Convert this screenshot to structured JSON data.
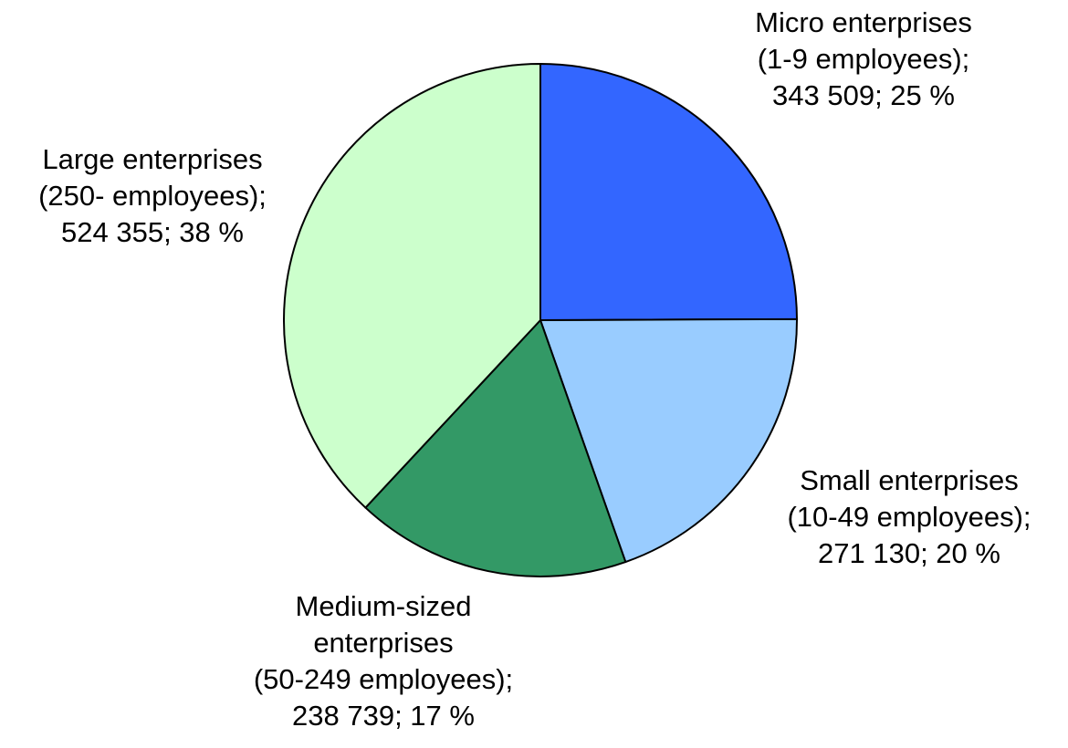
{
  "chart_data": {
    "type": "pie",
    "title": "",
    "start_angle_deg": 0,
    "direction": "clockwise",
    "slices": [
      {
        "name": "Micro enterprises (1-9 employees)",
        "value": 343509,
        "percent": 25,
        "color": "#3366FF",
        "label_lines": [
          "Micro enterprises",
          "(1-9 employees);",
          "343 509; 25 %"
        ]
      },
      {
        "name": "Small enterprises (10-49 employees)",
        "value": 271130,
        "percent": 20,
        "color": "#99CCFF",
        "label_lines": [
          "Small enterprises",
          "(10-49 employees);",
          "271 130; 20 %"
        ]
      },
      {
        "name": "Medium-sized enterprises (50-249 employees)",
        "value": 238739,
        "percent": 17,
        "color": "#339966",
        "label_lines": [
          "Medium-sized",
          "enterprises",
          "(50-249 employees);",
          "238 739; 17 %"
        ]
      },
      {
        "name": "Large enterprises (250- employees)",
        "value": 524355,
        "percent": 38,
        "color": "#CCFFCC",
        "label_lines": [
          "Large enterprises",
          "(250- employees);",
          "524 355; 38 %"
        ]
      }
    ]
  }
}
